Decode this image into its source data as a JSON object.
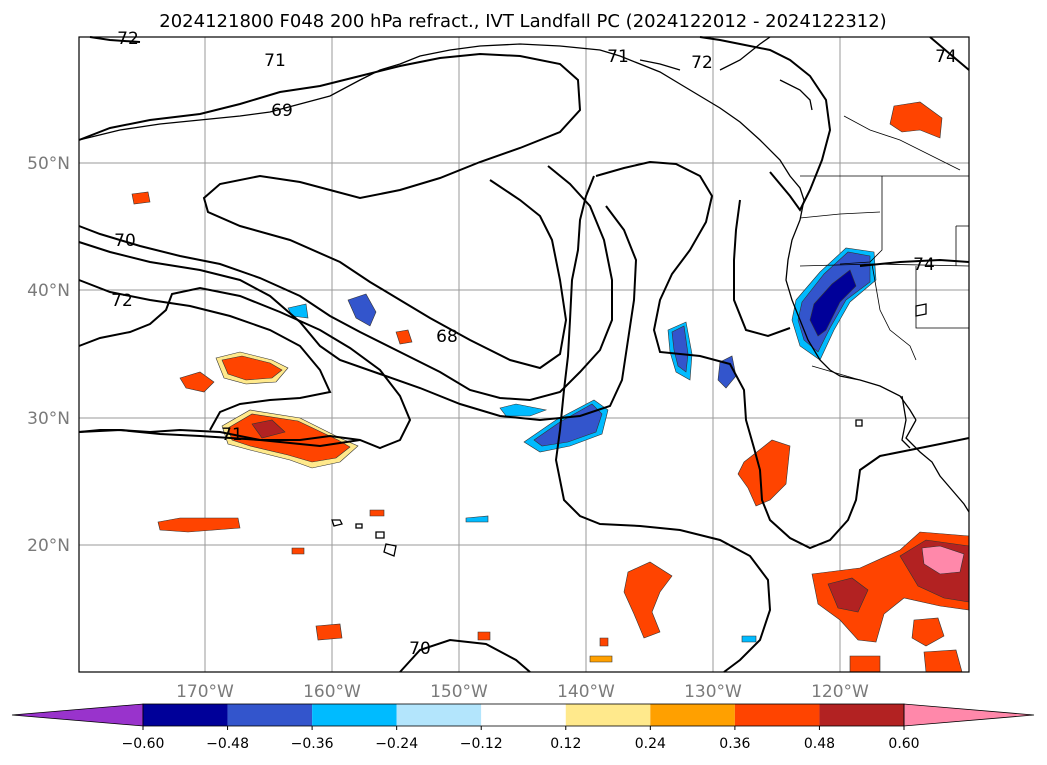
{
  "title": "2024121800 F048 200 hPa refract., IVT Landfall PC (2024122012 - 2024122312)",
  "lat_labels": [
    "50°N",
    "40°N",
    "30°N",
    "20°N"
  ],
  "lon_labels": [
    "170°W",
    "160°W",
    "150°W",
    "140°W",
    "130°W",
    "120°W"
  ],
  "contour_labels": [
    "72",
    "71",
    "69",
    "70",
    "72",
    "68",
    "71",
    "70",
    "71",
    "72",
    "74",
    "74"
  ],
  "colorbar": {
    "ticks": [
      "−0.60",
      "−0.48",
      "−0.36",
      "−0.24",
      "−0.12",
      "0.12",
      "0.24",
      "0.36",
      "0.48",
      "0.60"
    ],
    "colors": [
      "#9933cc",
      "#000099",
      "#3355cc",
      "#00bbff",
      "#b3e5fc",
      "#ffffff",
      "#ffe98c",
      "#ffa000",
      "#ff4400",
      "#b22222",
      "#ff88aa"
    ]
  }
}
